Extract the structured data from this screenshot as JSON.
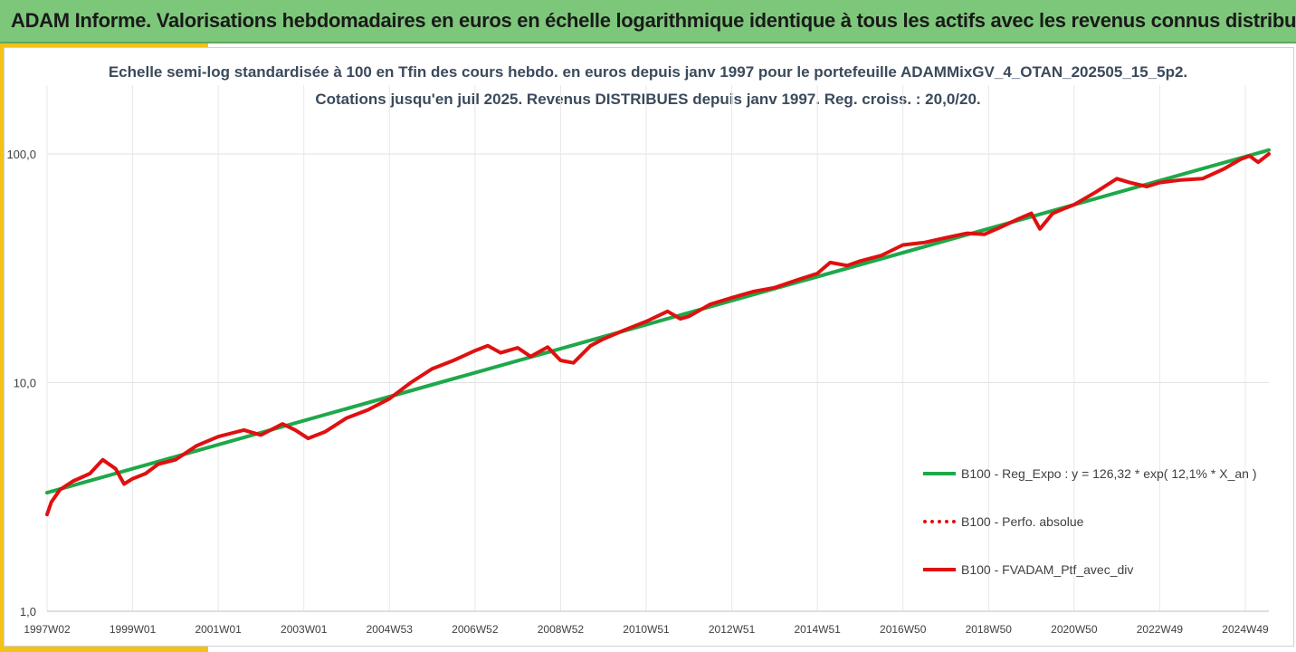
{
  "header": {
    "title": "ADAM Informe. Valorisations hebdomadaires en euros en échelle logarithmique identique à tous les actifs avec les revenus connus distribués",
    "background": "#7dc77a",
    "accent": "#f2c21a"
  },
  "chart_data": {
    "type": "line",
    "title": "Echelle semi-log standardisée  à 100 en Tfin des cours hebdo.  en euros depuis janv 1997 pour le portefeuille ADAMMixGV_4_OTAN_202505_15_5p2.",
    "subtitle": "Cotations  jusqu'en juil 2025. Revenus DISTRIBUES depuis janv 1997. Reg. croiss. : 20,0/20.",
    "y_scale": "log",
    "ylim": [
      1,
      200
    ],
    "y_ticks": [
      1,
      10,
      100
    ],
    "y_tick_labels": [
      "1,0",
      "10,0",
      "100,0"
    ],
    "xlim": [
      1997.0,
      2025.55
    ],
    "x_ticks": [
      1997.0,
      1999.0,
      2001.0,
      2003.0,
      2005.0,
      2007.0,
      2009.0,
      2011.0,
      2013.0,
      2015.0,
      2017.0,
      2019.0,
      2021.0,
      2023.0,
      2025.0
    ],
    "x_tick_labels": [
      "1997W02",
      "1999W01",
      "2001W01",
      "2003W01",
      "2004W53",
      "2006W52",
      "2008W52",
      "2010W51",
      "2012W51",
      "2014W51",
      "2016W50",
      "2018W50",
      "2020W50",
      "2022W49",
      "2024W49"
    ],
    "grid": true,
    "legend_position": "right",
    "series": [
      {
        "name": "B100 - Reg_Expo : y = 126,32 * exp( 12,1% *  X_an )",
        "color": "#1ea84a",
        "style": "solid",
        "x": [
          1997.0,
          2025.55
        ],
        "values": [
          3.3,
          104
        ]
      },
      {
        "name": "B100 - Perfo. absolue",
        "color": "#e01010",
        "style": "dotted",
        "x": [],
        "values": []
      },
      {
        "name": "B100 - FVADAM_Ptf_avec_div",
        "color": "#e01010",
        "style": "solid",
        "x": [
          1997.0,
          1997.1,
          1997.3,
          1997.6,
          1998.0,
          1998.3,
          1998.6,
          1998.8,
          1999.0,
          1999.3,
          1999.6,
          2000.0,
          2000.5,
          2001.0,
          2001.3,
          2001.6,
          2002.0,
          2002.5,
          2002.8,
          2003.1,
          2003.5,
          2004.0,
          2004.5,
          2005.0,
          2005.5,
          2006.0,
          2006.5,
          2007.0,
          2007.3,
          2007.6,
          2008.0,
          2008.3,
          2008.7,
          2009.0,
          2009.3,
          2009.7,
          2010.0,
          2010.5,
          2011.0,
          2011.5,
          2011.8,
          2012.0,
          2012.5,
          2013.0,
          2013.5,
          2014.0,
          2014.5,
          2015.0,
          2015.3,
          2015.7,
          2016.0,
          2016.5,
          2017.0,
          2017.5,
          2018.0,
          2018.5,
          2018.9,
          2019.3,
          2019.7,
          2020.0,
          2020.2,
          2020.5,
          2020.8,
          2021.0,
          2021.5,
          2022.0,
          2022.3,
          2022.7,
          2023.0,
          2023.5,
          2024.0,
          2024.5,
          2024.9,
          2025.1,
          2025.3,
          2025.55
        ],
        "values": [
          2.65,
          3.0,
          3.4,
          3.7,
          4.0,
          4.6,
          4.2,
          3.6,
          3.8,
          4.0,
          4.4,
          4.6,
          5.3,
          5.8,
          6.0,
          6.2,
          5.9,
          6.6,
          6.2,
          5.7,
          6.1,
          7.0,
          7.6,
          8.5,
          10.0,
          11.5,
          12.5,
          13.8,
          14.5,
          13.5,
          14.2,
          13.0,
          14.3,
          12.5,
          12.2,
          14.5,
          15.5,
          17.0,
          18.5,
          20.5,
          19.0,
          19.5,
          22.0,
          23.5,
          25.0,
          26.0,
          28.0,
          30.0,
          33.5,
          32.5,
          34.0,
          36.0,
          40.0,
          41.0,
          43.0,
          45.0,
          44.5,
          48.0,
          52.0,
          55.0,
          47.0,
          55.0,
          58.0,
          60.0,
          68.0,
          78.0,
          75.0,
          72.0,
          75.0,
          77.0,
          78.0,
          86.0,
          95.0,
          98.0,
          92.0,
          100.0
        ]
      }
    ]
  }
}
